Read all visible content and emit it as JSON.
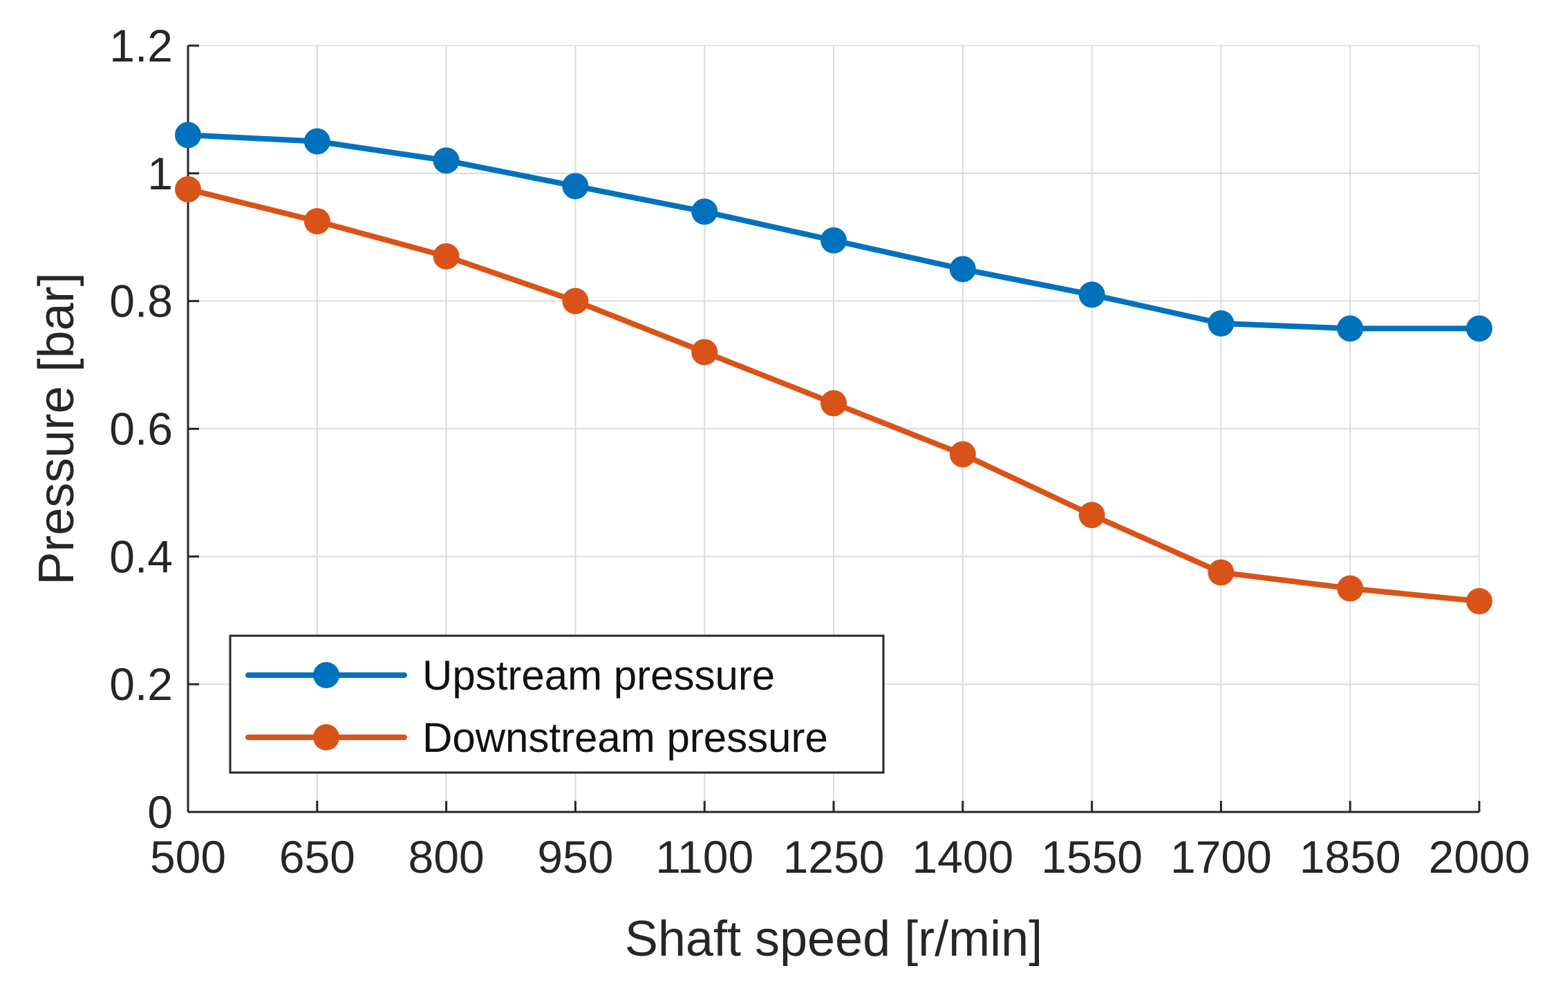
{
  "chart_data": {
    "type": "line",
    "title": "",
    "xlabel": "Shaft speed [r/min]",
    "ylabel": "Pressure [bar]",
    "x": [
      500,
      650,
      800,
      950,
      1100,
      1250,
      1400,
      1550,
      1700,
      1850,
      2000
    ],
    "x_tick_labels": [
      "500",
      "650",
      "800",
      "950",
      "1100",
      "1250",
      "1400",
      "1550",
      "1700",
      "1850",
      "2000"
    ],
    "xlim": [
      500,
      2000
    ],
    "ylim": [
      0,
      1.2
    ],
    "y_ticks": [
      0,
      0.2,
      0.4,
      0.6,
      0.8,
      1,
      1.2
    ],
    "y_tick_labels": [
      "0",
      "0.2",
      "0.4",
      "0.6",
      "0.8",
      "1",
      "1.2"
    ],
    "grid": true,
    "legend_position": "bottom-left",
    "series": [
      {
        "name": "Upstream pressure",
        "color": "#0072BD",
        "marker": "circle",
        "values": [
          1.06,
          1.05,
          1.02,
          0.98,
          0.94,
          0.895,
          0.85,
          0.81,
          0.765,
          0.757,
          0.757
        ]
      },
      {
        "name": "Downstream pressure",
        "color": "#D95319",
        "marker": "circle",
        "values": [
          0.975,
          0.925,
          0.87,
          0.8,
          0.72,
          0.64,
          0.56,
          0.465,
          0.375,
          0.35,
          0.33
        ]
      }
    ]
  }
}
